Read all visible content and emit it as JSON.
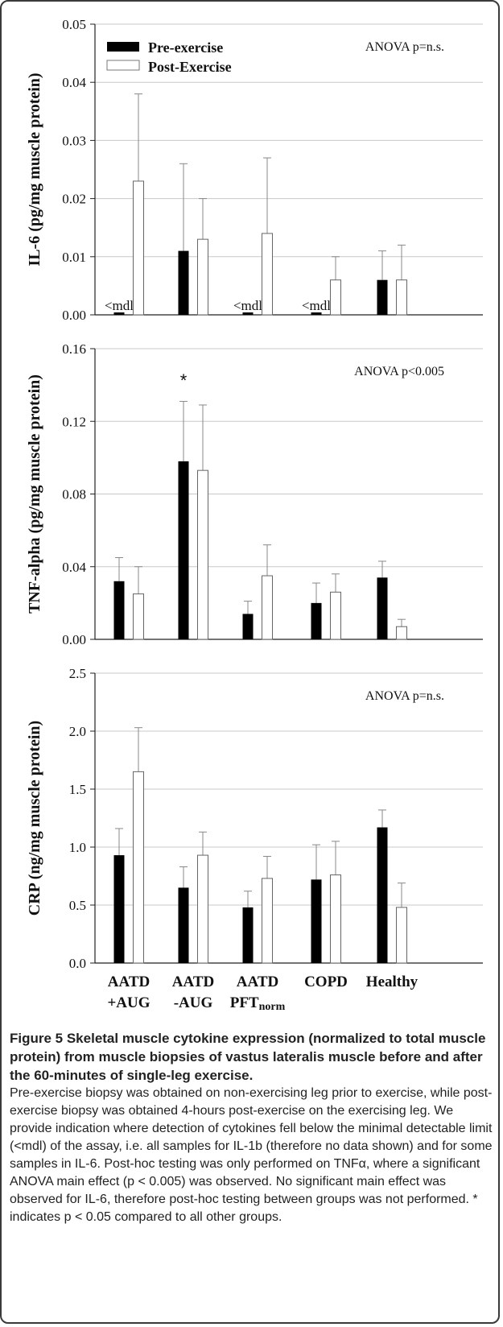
{
  "legend": {
    "pre": "Pre-exercise",
    "post": "Post-Exercise"
  },
  "categories": [
    {
      "line1": "AATD",
      "line2": "+AUG",
      "sub": ""
    },
    {
      "line1": "AATD",
      "line2": "-AUG",
      "sub": ""
    },
    {
      "line1": "AATD",
      "line2": "PFT",
      "sub": "norm"
    },
    {
      "line1": "COPD",
      "line2": "",
      "sub": ""
    },
    {
      "line1": "Healthy",
      "line2": "",
      "sub": ""
    }
  ],
  "chart_data": [
    {
      "type": "bar",
      "ylabel": "IL-6 (pg/mg muscle protein)",
      "annotation": "ANOVA p=n.s.",
      "ylim": [
        0,
        0.05
      ],
      "ticks": [
        "0.00",
        "0.01",
        "0.02",
        "0.03",
        "0.04",
        "0.05"
      ],
      "categories": [
        "AATD +AUG",
        "AATD -AUG",
        "AATD PFTnorm",
        "COPD",
        "Healthy"
      ],
      "legend_position": "top-left",
      "grid": true,
      "series": [
        {
          "name": "Pre-exercise",
          "fill": "#000000",
          "values": [
            0,
            0.011,
            0,
            0,
            0.006
          ],
          "error": [
            0,
            0.015,
            0,
            0,
            0.005
          ]
        },
        {
          "name": "Post-Exercise",
          "fill": "#ffffff",
          "values": [
            0.023,
            0.013,
            0.014,
            0.006,
            0.006
          ],
          "error": [
            0.015,
            0.007,
            0.013,
            0.004,
            0.006
          ]
        }
      ],
      "below_mdl": [
        0,
        2,
        3
      ],
      "mdl_label": "<mdl"
    },
    {
      "type": "bar",
      "ylabel": "TNF-alpha (pg/mg muscle protein)",
      "annotation": "ANOVA p<0.005",
      "ylim": [
        0,
        0.16
      ],
      "ticks": [
        "0.00",
        "0.04",
        "0.08",
        "0.12",
        "0.16"
      ],
      "categories": [
        "AATD +AUG",
        "AATD -AUG",
        "AATD PFTnorm",
        "COPD",
        "Healthy"
      ],
      "grid": true,
      "series": [
        {
          "name": "Pre-exercise",
          "fill": "#000000",
          "values": [
            0.032,
            0.098,
            0.014,
            0.02,
            0.034
          ],
          "error": [
            0.013,
            0.033,
            0.007,
            0.011,
            0.009
          ]
        },
        {
          "name": "Post-Exercise",
          "fill": "#ffffff",
          "values": [
            0.025,
            0.093,
            0.035,
            0.026,
            0.007
          ],
          "error": [
            0.015,
            0.036,
            0.017,
            0.01,
            0.004
          ]
        }
      ],
      "significance": {
        "category": 1,
        "label": "*"
      }
    },
    {
      "type": "bar",
      "ylabel": "CRP (ng/mg muscle protein)",
      "annotation": "ANOVA p=n.s.",
      "ylim": [
        0,
        2.5
      ],
      "ticks": [
        "0.0",
        "0.5",
        "1.0",
        "1.5",
        "2.0",
        "2.5"
      ],
      "categories": [
        "AATD +AUG",
        "AATD -AUG",
        "AATD PFTnorm",
        "COPD",
        "Healthy"
      ],
      "grid": true,
      "series": [
        {
          "name": "Pre-exercise",
          "fill": "#000000",
          "values": [
            0.93,
            0.65,
            0.48,
            0.72,
            1.17
          ],
          "error": [
            0.23,
            0.18,
            0.14,
            0.3,
            0.15
          ]
        },
        {
          "name": "Post-Exercise",
          "fill": "#ffffff",
          "values": [
            1.65,
            0.93,
            0.73,
            0.76,
            0.48
          ],
          "error": [
            0.38,
            0.2,
            0.19,
            0.29,
            0.21
          ]
        }
      ]
    }
  ],
  "caption": {
    "title": "Figure 5 Skeletal muscle cytokine expression (normalized to total muscle protein) from muscle biopsies of vastus lateralis muscle before and after the 60-minutes of single-leg exercise.",
    "body": "Pre-exercise biopsy was obtained on non-exercising leg prior to exercise, while post-exercise biopsy was obtained 4-hours post-exercise on the exercising leg. We provide indication where detection of cytokines fell below the minimal detectable limit (<mdl) of the assay, i.e. all samples for IL-1b (therefore no data shown) and for some samples in IL-6. Post-hoc testing was only performed on TNFα, where a significant ANOVA main effect (p < 0.005) was observed. No significant main effect was observed for IL-6, therefore post-hoc testing between groups was not performed. * indicates p < 0.05 compared to all other groups."
  }
}
